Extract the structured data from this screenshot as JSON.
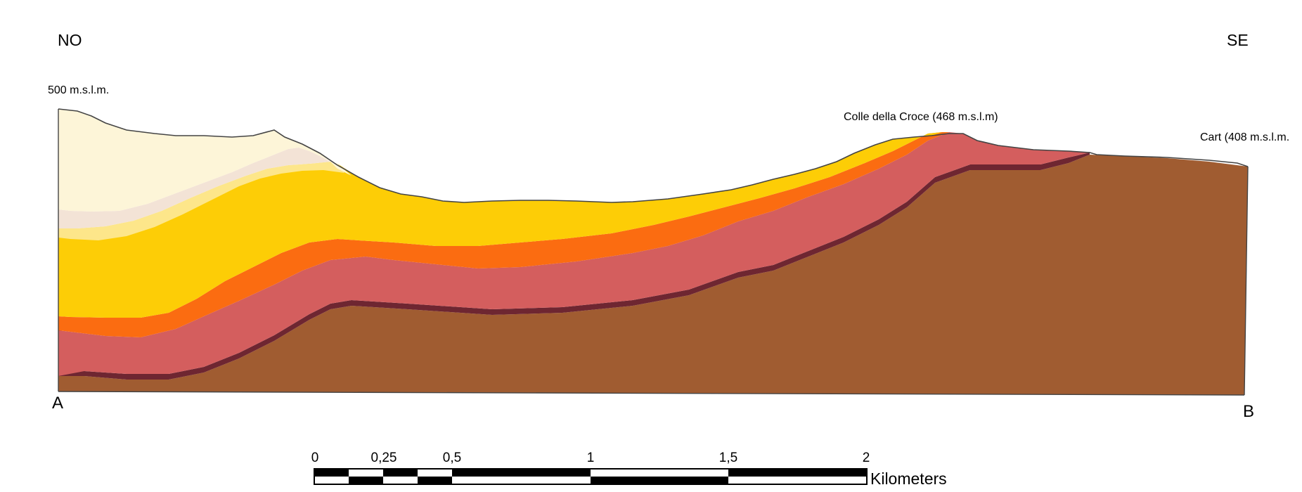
{
  "orientation": {
    "left": "NO",
    "right": "SE"
  },
  "elevation_label": "500 m.s.l.m.",
  "peaks": [
    {
      "label": "Colle della Croce (468 m.s.l.m)"
    },
    {
      "label": "Cart (408 m.s.l.m."
    }
  ],
  "section_points": {
    "start": "A",
    "end": "B"
  },
  "scale_bar": {
    "ticks": [
      "0",
      "0,25",
      "0,5",
      "1",
      "1,5",
      "2"
    ],
    "unit": "Kilometers"
  },
  "layer_colors": {
    "cream": "#fdf5d8",
    "pale_pink": "#f3e3d6",
    "pale_yellow": "#fde68a",
    "yellow": "#fdcd06",
    "orange": "#fb6c11",
    "salmon": "#d45e5e",
    "maroon": "#6e2631",
    "brown": "#a05c31"
  }
}
